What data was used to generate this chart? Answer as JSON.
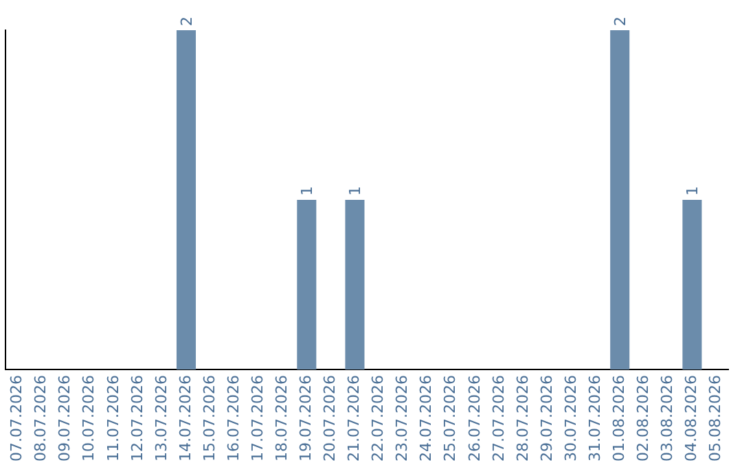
{
  "chart_data": {
    "type": "bar",
    "categories": [
      "07.07.2026",
      "08.07.2026",
      "09.07.2026",
      "10.07.2026",
      "11.07.2026",
      "12.07.2026",
      "13.07.2026",
      "14.07.2026",
      "15.07.2026",
      "16.07.2026",
      "17.07.2026",
      "18.07.2026",
      "19.07.2026",
      "20.07.2026",
      "21.07.2026",
      "22.07.2026",
      "23.07.2026",
      "24.07.2026",
      "25.07.2026",
      "26.07.2026",
      "27.07.2026",
      "28.07.2026",
      "29.07.2026",
      "30.07.2026",
      "31.07.2026",
      "01.08.2026",
      "02.08.2026",
      "03.08.2026",
      "04.08.2026",
      "05.08.2026"
    ],
    "values": [
      0,
      0,
      0,
      0,
      0,
      0,
      0,
      2,
      0,
      0,
      0,
      0,
      1,
      0,
      1,
      0,
      0,
      0,
      0,
      0,
      0,
      0,
      0,
      0,
      0,
      2,
      0,
      0,
      1,
      0
    ],
    "value_labels": [
      null,
      null,
      null,
      null,
      null,
      null,
      null,
      "2",
      null,
      null,
      null,
      null,
      "1",
      null,
      "1",
      null,
      null,
      null,
      null,
      null,
      null,
      null,
      null,
      null,
      null,
      "2",
      null,
      null,
      "1",
      null
    ],
    "color": "#6b8cab",
    "tick_labels": "x",
    "grid": false,
    "legend": false
  }
}
